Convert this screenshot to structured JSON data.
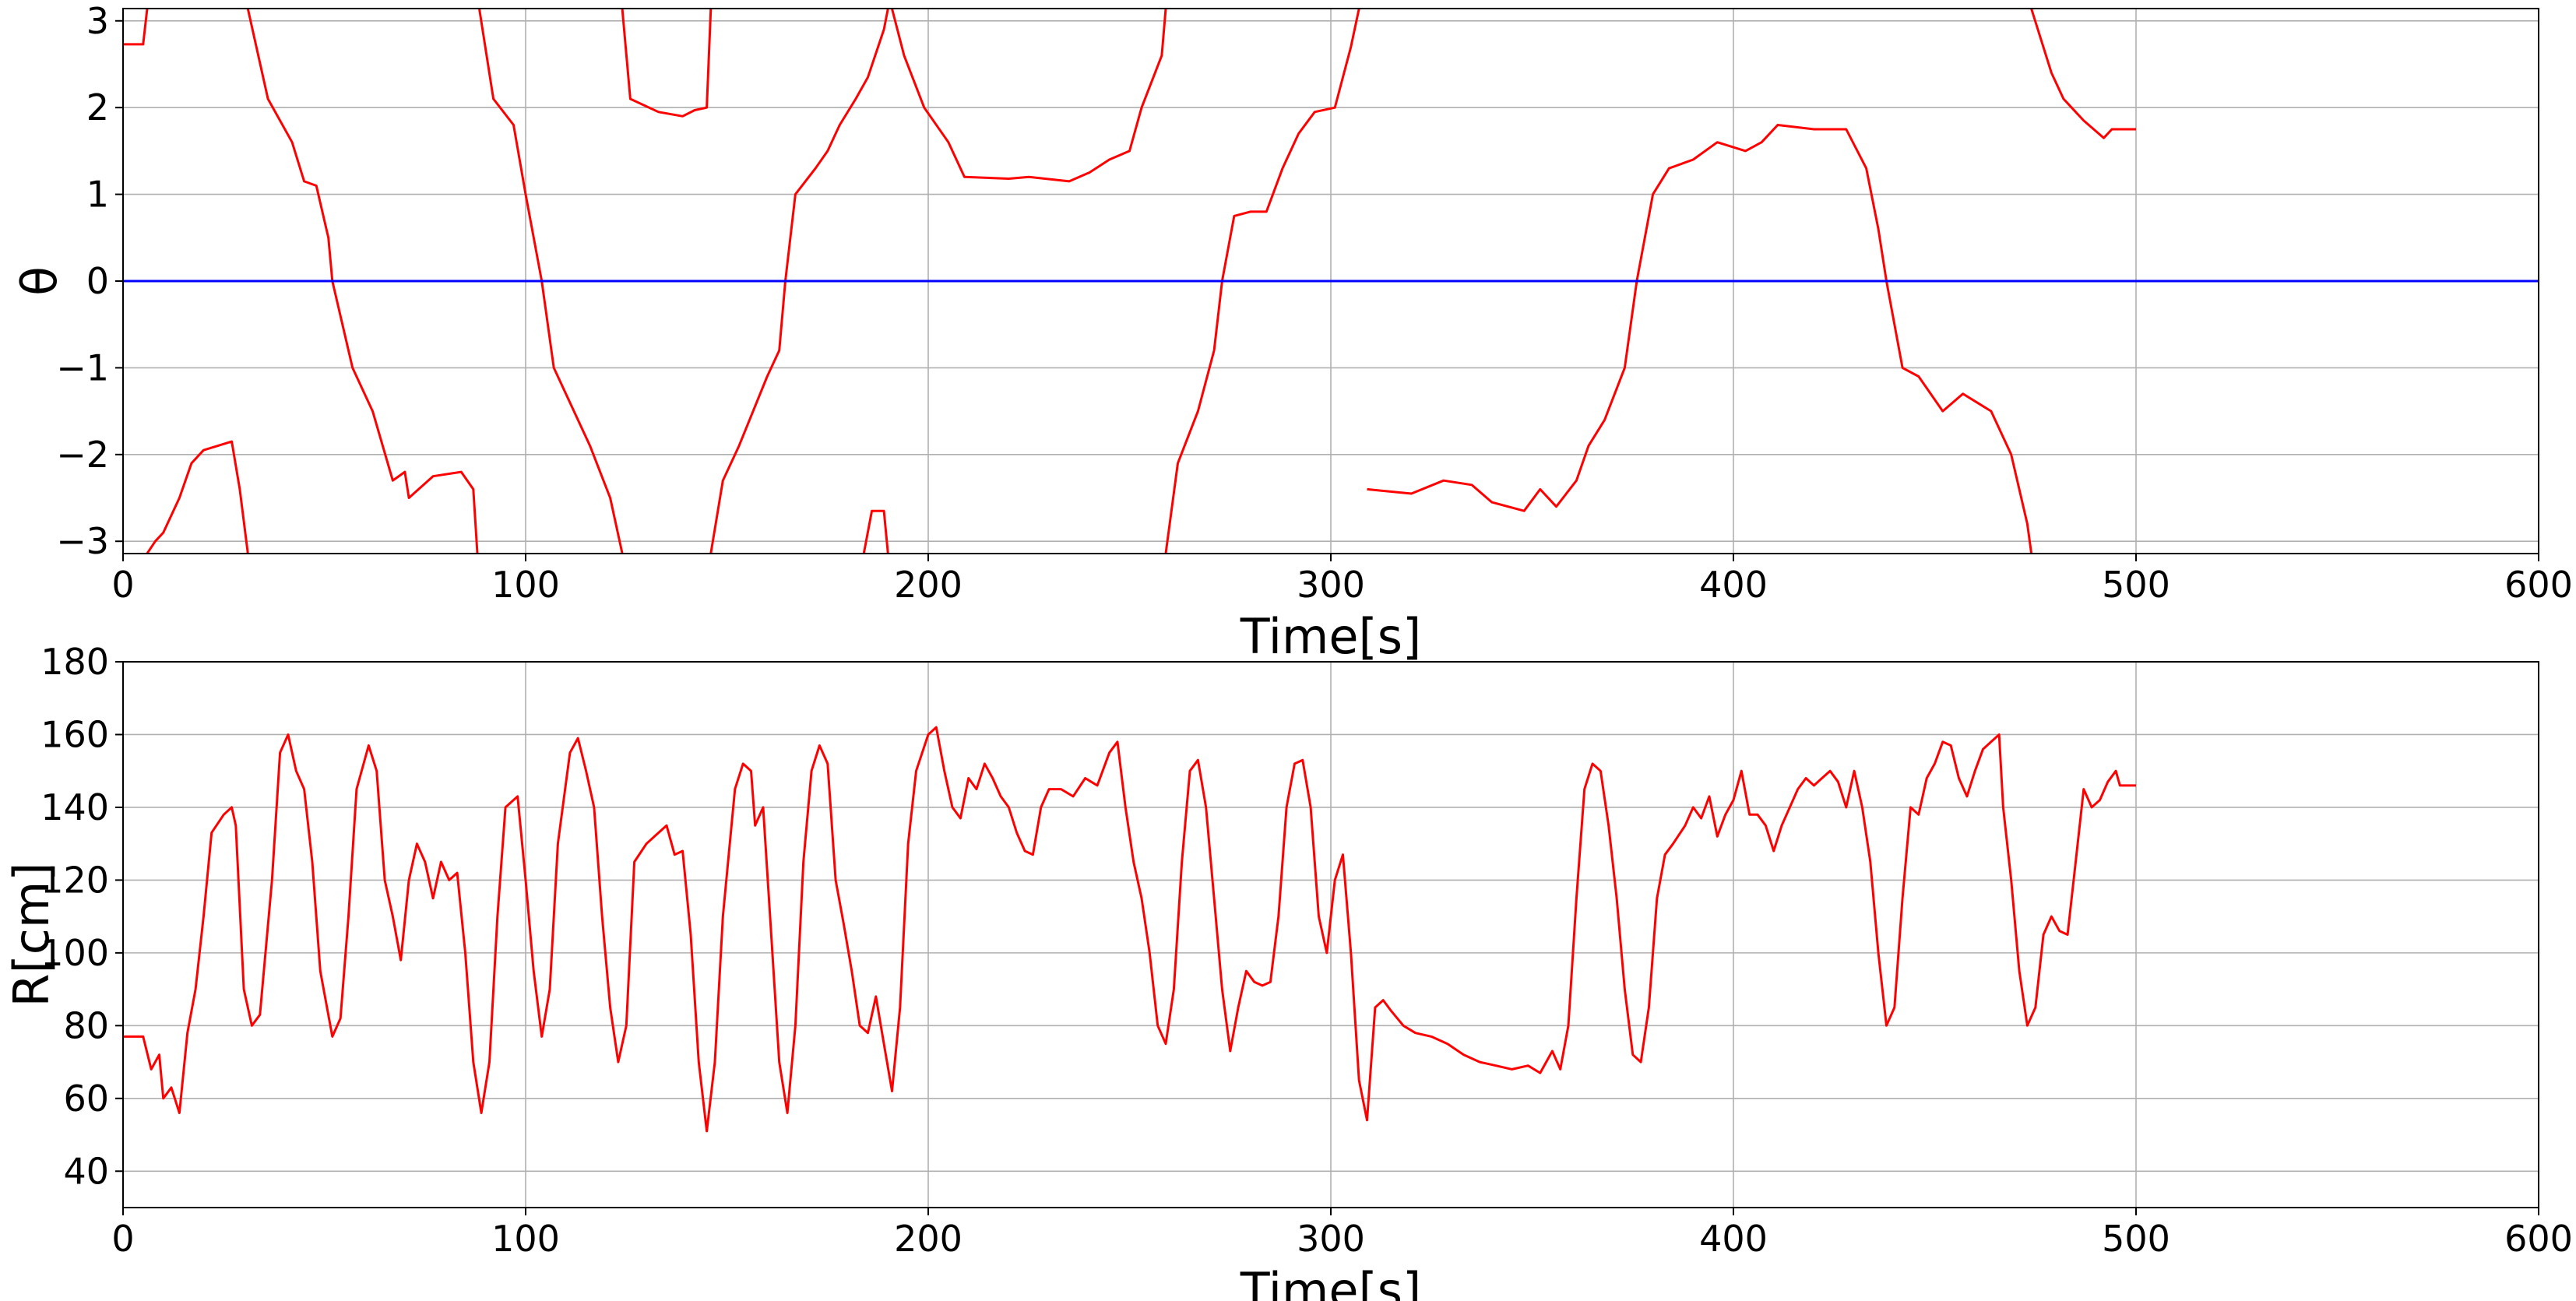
{
  "chart_data": [
    {
      "type": "line",
      "x_label": "Time[s]",
      "y_label": "θ",
      "xlim": [
        0,
        600
      ],
      "xticks": [
        0,
        100,
        200,
        300,
        400,
        500,
        600
      ],
      "ylim": [
        -3.14159,
        3.14159
      ],
      "yticks": [
        {
          "value": -3,
          "label": "−3"
        },
        {
          "value": -2,
          "label": "−2"
        },
        {
          "value": -1,
          "label": "−1"
        },
        0,
        1,
        2,
        3
      ],
      "grid": true,
      "series": [
        {
          "color": "#ff0000",
          "x": [
            0,
            5,
            6,
            6,
            6,
            8,
            10,
            14,
            17,
            20,
            27,
            29,
            31,
            31,
            31,
            36,
            42,
            45,
            48,
            51,
            52,
            57,
            62,
            67,
            70,
            71,
            77,
            84,
            87,
            88,
            88,
            88.5,
            92,
            97,
            100,
            104,
            107,
            116,
            121,
            124,
            124,
            124,
            126,
            133,
            139,
            142,
            145,
            146,
            146,
            146,
            149,
            153,
            160,
            163,
            164.5,
            167,
            172,
            175,
            178,
            182,
            185,
            189,
            190,
            190,
            184,
            186,
            189,
            190,
            190,
            191,
            194,
            199,
            205,
            209,
            220,
            225,
            235,
            240,
            245,
            250,
            253,
            258,
            259,
            259,
            259,
            262,
            267,
            271,
            273,
            276,
            280,
            284,
            288,
            292,
            296,
            301,
            305,
            307,
            307,
            309,
            320,
            328,
            335,
            340,
            348,
            352,
            356,
            361,
            364,
            368,
            373,
            376,
            380,
            384,
            390,
            396,
            403,
            407,
            411,
            420,
            428,
            433,
            436,
            438,
            442,
            446,
            452,
            457,
            464,
            469,
            473,
            474,
            474,
            474,
            479,
            482,
            487,
            492,
            494,
            500
          ],
          "values": [
            2.73,
            2.73,
            3.14,
            null,
            -3.14,
            -3.0,
            -2.9,
            -2.5,
            -2.1,
            -1.95,
            -1.85,
            -2.4,
            -3.14,
            null,
            3.14,
            2.1,
            1.6,
            1.15,
            1.1,
            0.5,
            0,
            -1,
            -1.5,
            -2.3,
            -2.2,
            -2.5,
            -2.25,
            -2.2,
            -2.4,
            -3.14,
            null,
            3.14,
            2.1,
            1.8,
            1,
            0,
            -1,
            -1.9,
            -2.5,
            -3.14,
            null,
            3.14,
            2.1,
            1.95,
            1.9,
            1.97,
            2,
            3.14,
            null,
            -3.14,
            -2.3,
            -1.9,
            -1.1,
            -0.8,
            0,
            1,
            1.3,
            1.5,
            1.8,
            2.1,
            2.35,
            2.9,
            3.14,
            null,
            -3.14,
            -2.65,
            -2.65,
            -3.14,
            null,
            3.14,
            2.6,
            2,
            1.6,
            1.2,
            1.18,
            1.2,
            1.15,
            1.25,
            1.4,
            1.5,
            2,
            2.6,
            3.14,
            null,
            -3.14,
            -2.1,
            -1.5,
            -0.8,
            0,
            0.75,
            0.8,
            0.8,
            1.3,
            1.7,
            1.95,
            2,
            2.7,
            3.14,
            null,
            -2.4,
            -2.45,
            -2.3,
            -2.35,
            -2.55,
            -2.65,
            -2.4,
            -2.6,
            -2.3,
            -1.9,
            -1.6,
            -1,
            0,
            1,
            1.3,
            1.4,
            1.6,
            1.5,
            1.6,
            1.8,
            1.75,
            1.75,
            1.3,
            0.6,
            0,
            -1,
            -1.1,
            -1.5,
            -1.3,
            -1.5,
            -2,
            -2.8,
            -3.14,
            null,
            3.14,
            2.4,
            2.1,
            1.85,
            1.65,
            1.75,
            1.75
          ]
        },
        {
          "color": "#0000ff",
          "x": [
            0,
            600
          ],
          "values": [
            0,
            0
          ]
        }
      ]
    },
    {
      "type": "line",
      "x_label": "Time[s]",
      "y_label": "R[cm]",
      "xlim": [
        0,
        600
      ],
      "xticks": [
        0,
        100,
        200,
        300,
        400,
        500,
        600
      ],
      "ylim": [
        30,
        180
      ],
      "yticks": [
        40,
        60,
        80,
        100,
        120,
        140,
        160,
        180
      ],
      "grid": true,
      "series": [
        {
          "color": "#ff0000",
          "x": [
            0,
            5,
            7,
            9,
            10,
            12,
            14,
            16,
            18,
            20,
            22,
            25,
            27,
            28,
            30,
            32,
            34,
            37,
            39,
            41,
            43,
            45,
            47,
            49,
            52,
            54,
            56,
            58,
            61,
            63,
            65,
            67,
            69,
            71,
            73,
            75,
            77,
            79,
            81,
            83,
            85,
            87,
            89,
            91,
            93,
            95,
            98,
            100,
            102,
            104,
            106,
            108,
            111,
            113,
            115,
            117,
            119,
            121,
            123,
            125,
            127,
            130,
            133,
            135,
            137,
            139,
            141,
            143,
            145,
            147,
            149,
            152,
            154,
            156,
            157,
            159,
            161,
            163,
            165,
            167,
            169,
            171,
            173,
            175,
            177,
            179,
            181,
            183,
            185,
            187,
            189,
            191,
            193,
            195,
            197,
            200,
            202,
            204,
            206,
            208,
            210,
            212,
            214,
            216,
            218,
            220,
            222,
            224,
            226,
            228,
            230,
            233,
            236,
            239,
            242,
            245,
            247,
            249,
            251,
            253,
            255,
            257,
            259,
            261,
            263,
            265,
            267,
            269,
            271,
            273,
            275,
            277,
            279,
            281,
            283,
            285,
            287,
            289,
            291,
            293,
            295,
            297,
            299,
            301,
            303,
            305,
            307,
            309,
            311,
            313,
            315,
            318,
            321,
            325,
            329,
            333,
            337,
            341,
            345,
            349,
            352,
            355,
            357,
            359,
            361,
            363,
            365,
            367,
            369,
            371,
            373,
            375,
            377,
            379,
            381,
            383,
            385,
            388,
            390,
            392,
            394,
            396,
            398,
            400,
            402,
            404,
            406,
            408,
            410,
            412,
            414,
            416,
            418,
            420,
            422,
            424,
            426,
            428,
            430,
            432,
            434,
            436,
            438,
            440,
            442,
            444,
            446,
            448,
            450,
            452,
            454,
            456,
            458,
            460,
            462,
            464,
            466,
            467,
            469,
            471,
            473,
            475,
            477,
            479,
            481,
            483,
            485,
            487,
            489,
            491,
            493,
            495,
            496,
            500
          ],
          "values": [
            77,
            77,
            68,
            72,
            60,
            63,
            56,
            78,
            90,
            110,
            133,
            138,
            140,
            135,
            90,
            80,
            83,
            120,
            155,
            160,
            150,
            145,
            125,
            95,
            77,
            82,
            110,
            145,
            157,
            150,
            120,
            110,
            98,
            120,
            130,
            125,
            115,
            125,
            120,
            122,
            100,
            70,
            56,
            70,
            110,
            140,
            143,
            120,
            95,
            77,
            90,
            130,
            155,
            159,
            150,
            140,
            110,
            85,
            70,
            80,
            125,
            130,
            133,
            135,
            127,
            128,
            105,
            70,
            51,
            70,
            110,
            145,
            152,
            150,
            135,
            140,
            105,
            70,
            56,
            80,
            125,
            150,
            157,
            152,
            120,
            108,
            95,
            80,
            78,
            88,
            75,
            62,
            85,
            130,
            150,
            160,
            162,
            150,
            140,
            137,
            148,
            145,
            152,
            148,
            143,
            140,
            133,
            128,
            127,
            140,
            145,
            145,
            143,
            148,
            146,
            155,
            158,
            140,
            125,
            115,
            100,
            80,
            75,
            90,
            125,
            150,
            153,
            140,
            115,
            90,
            73,
            85,
            95,
            92,
            91,
            92,
            110,
            140,
            152,
            153,
            140,
            110,
            100,
            120,
            127,
            100,
            65,
            54,
            85,
            87,
            84,
            80,
            78,
            77,
            75,
            72,
            70,
            69,
            68,
            69,
            67,
            73,
            68,
            80,
            115,
            145,
            152,
            150,
            135,
            115,
            90,
            72,
            70,
            85,
            115,
            127,
            130,
            135,
            140,
            137,
            143,
            132,
            138,
            142,
            150,
            138,
            138,
            135,
            128,
            135,
            140,
            145,
            148,
            146,
            148,
            150,
            147,
            140,
            150,
            140,
            125,
            100,
            80,
            85,
            115,
            140,
            138,
            148,
            152,
            158,
            157,
            148,
            143,
            150,
            156,
            158,
            160,
            140,
            120,
            95,
            80,
            85,
            105,
            110,
            106,
            105,
            125,
            145,
            140,
            142,
            147,
            150,
            146,
            146
          ]
        }
      ]
    }
  ]
}
